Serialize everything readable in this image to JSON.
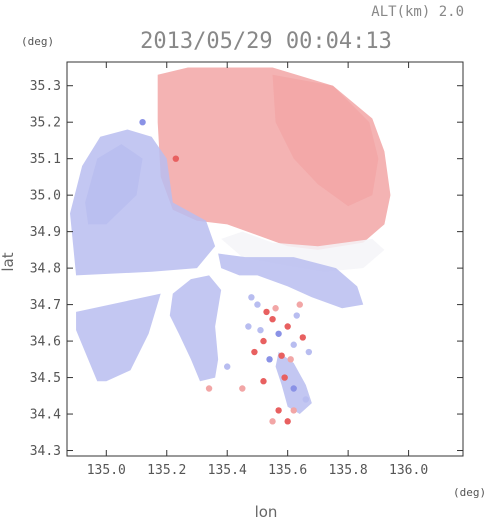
{
  "header": {
    "altitude": "ALT(km) 2.0",
    "timestamp": "2013/05/29 00:04:13",
    "unit_top_left": "(deg)",
    "unit_bottom_right": "(deg)"
  },
  "chart_data": {
    "type": "heatmap",
    "title": "2013/05/29 00:04:13",
    "xlabel": "lon",
    "ylabel": "lat",
    "xlim": [
      134.87,
      136.18
    ],
    "ylim": [
      34.285,
      35.365
    ],
    "x_ticks": [
      "135.0",
      "135.2",
      "135.4",
      "135.6",
      "135.8",
      "136.0"
    ],
    "y_ticks": [
      "34.3",
      "34.4",
      "34.5",
      "34.6",
      "34.7",
      "34.8",
      "34.9",
      "35.0",
      "35.1",
      "35.2",
      "35.3"
    ],
    "grid": false,
    "colors": {
      "positive": "#f2a6a6",
      "positive_strong": "#e86060",
      "neutral": "#f4f4f8",
      "negative": "#b8bdf0",
      "negative_strong": "#8a92e6"
    },
    "regions": [
      {
        "sign": "positive",
        "polygon": [
          [
            135.17,
            35.33
          ],
          [
            135.27,
            35.35
          ],
          [
            135.55,
            35.35
          ],
          [
            135.75,
            35.3
          ],
          [
            135.88,
            35.21
          ],
          [
            135.92,
            35.12
          ],
          [
            135.94,
            35.0
          ],
          [
            135.92,
            34.92
          ],
          [
            135.85,
            34.87
          ],
          [
            135.7,
            34.85
          ],
          [
            135.6,
            34.86
          ],
          [
            135.5,
            34.89
          ],
          [
            135.4,
            34.92
          ],
          [
            135.3,
            34.93
          ],
          [
            135.22,
            34.96
          ],
          [
            135.18,
            35.05
          ],
          [
            135.17,
            35.2
          ]
        ]
      },
      {
        "sign": "neutral",
        "polygon": [
          [
            135.38,
            34.88
          ],
          [
            135.45,
            34.83
          ],
          [
            135.58,
            34.81
          ],
          [
            135.72,
            34.79
          ],
          [
            135.85,
            34.8
          ],
          [
            135.92,
            34.85
          ],
          [
            135.88,
            34.88
          ],
          [
            135.7,
            34.86
          ],
          [
            135.55,
            34.87
          ],
          [
            135.45,
            34.9
          ]
        ]
      },
      {
        "sign": "negative",
        "polygon": [
          [
            134.88,
            34.95
          ],
          [
            134.92,
            35.08
          ],
          [
            134.98,
            35.16
          ],
          [
            135.07,
            35.18
          ],
          [
            135.15,
            35.16
          ],
          [
            135.2,
            35.1
          ],
          [
            135.22,
            34.98
          ],
          [
            135.33,
            34.93
          ],
          [
            135.36,
            34.86
          ],
          [
            135.3,
            34.8
          ],
          [
            135.15,
            34.79
          ],
          [
            134.9,
            34.78
          ]
        ]
      },
      {
        "sign": "negative",
        "polygon": [
          [
            134.9,
            34.68
          ],
          [
            135.18,
            34.73
          ],
          [
            135.14,
            34.62
          ],
          [
            135.08,
            34.52
          ],
          [
            135.0,
            34.49
          ],
          [
            134.97,
            34.49
          ],
          [
            134.94,
            34.55
          ],
          [
            134.9,
            34.63
          ]
        ]
      },
      {
        "sign": "negative",
        "polygon": [
          [
            135.22,
            34.73
          ],
          [
            135.28,
            34.77
          ],
          [
            135.34,
            34.78
          ],
          [
            135.38,
            34.74
          ],
          [
            135.36,
            34.64
          ],
          [
            135.37,
            34.55
          ],
          [
            135.36,
            34.5
          ],
          [
            135.31,
            34.49
          ],
          [
            135.28,
            34.55
          ],
          [
            135.24,
            34.62
          ],
          [
            135.21,
            34.67
          ]
        ]
      },
      {
        "sign": "negative",
        "polygon": [
          [
            135.37,
            34.84
          ],
          [
            135.46,
            34.83
          ],
          [
            135.62,
            34.83
          ],
          [
            135.76,
            34.8
          ],
          [
            135.83,
            34.75
          ],
          [
            135.85,
            34.7
          ],
          [
            135.78,
            34.69
          ],
          [
            135.68,
            34.72
          ],
          [
            135.6,
            34.75
          ],
          [
            135.5,
            34.78
          ],
          [
            135.44,
            34.78
          ],
          [
            135.38,
            34.8
          ]
        ]
      },
      {
        "sign": "negative",
        "polygon": [
          [
            135.57,
            34.57
          ],
          [
            135.62,
            34.54
          ],
          [
            135.66,
            34.48
          ],
          [
            135.68,
            34.43
          ],
          [
            135.64,
            34.4
          ],
          [
            135.6,
            34.42
          ],
          [
            135.58,
            34.48
          ],
          [
            135.56,
            34.53
          ]
        ]
      },
      {
        "sign": "positive",
        "polygon": [
          [
            135.55,
            35.33
          ],
          [
            135.75,
            35.3
          ],
          [
            135.87,
            35.2
          ],
          [
            135.9,
            35.1
          ],
          [
            135.88,
            35.0
          ],
          [
            135.8,
            34.97
          ],
          [
            135.7,
            35.03
          ],
          [
            135.62,
            35.1
          ],
          [
            135.56,
            35.2
          ]
        ]
      },
      {
        "sign": "negative",
        "polygon": [
          [
            134.93,
            34.98
          ],
          [
            134.97,
            35.1
          ],
          [
            135.05,
            35.14
          ],
          [
            135.12,
            35.1
          ],
          [
            135.1,
            35.0
          ],
          [
            135.0,
            34.92
          ],
          [
            134.94,
            34.92
          ]
        ]
      }
    ],
    "speckles": [
      [
        135.49,
        34.57,
        "positive_strong"
      ],
      [
        135.51,
        34.63,
        "negative"
      ],
      [
        135.52,
        34.6,
        "positive_strong"
      ],
      [
        135.55,
        34.66,
        "positive_strong"
      ],
      [
        135.57,
        34.62,
        "negative_strong"
      ],
      [
        135.6,
        34.64,
        "positive_strong"
      ],
      [
        135.62,
        34.59,
        "negative"
      ],
      [
        135.58,
        34.56,
        "positive_strong"
      ],
      [
        135.54,
        34.55,
        "negative_strong"
      ],
      [
        135.56,
        34.69,
        "positive"
      ],
      [
        135.63,
        34.67,
        "negative"
      ],
      [
        135.65,
        34.61,
        "positive_strong"
      ],
      [
        135.47,
        34.64,
        "negative"
      ],
      [
        135.53,
        34.68,
        "positive_strong"
      ],
      [
        135.61,
        34.55,
        "positive"
      ],
      [
        135.59,
        34.5,
        "positive_strong"
      ],
      [
        135.62,
        34.47,
        "negative_strong"
      ],
      [
        135.57,
        34.41,
        "positive_strong"
      ],
      [
        135.6,
        34.38,
        "positive_strong"
      ],
      [
        135.55,
        34.38,
        "positive"
      ],
      [
        135.66,
        34.44,
        "negative"
      ],
      [
        135.62,
        34.41,
        "positive"
      ],
      [
        135.23,
        35.1,
        "positive_strong"
      ],
      [
        135.12,
        35.2,
        "negative_strong"
      ],
      [
        135.45,
        34.47,
        "positive"
      ],
      [
        135.4,
        34.53,
        "negative"
      ],
      [
        135.34,
        34.47,
        "positive"
      ],
      [
        135.5,
        34.7,
        "negative"
      ],
      [
        135.67,
        34.57,
        "negative"
      ],
      [
        135.52,
        34.49,
        "positive_strong"
      ],
      [
        135.48,
        34.72,
        "negative"
      ],
      [
        135.64,
        34.7,
        "positive"
      ]
    ]
  }
}
